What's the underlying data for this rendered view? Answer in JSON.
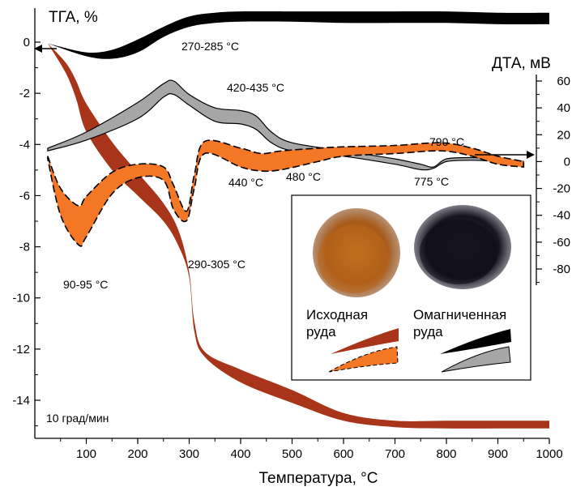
{
  "chart_data": {
    "type": "line",
    "title": "",
    "xlabel": "Температура, °С",
    "ylabel_left": "ТГА, %",
    "ylabel_right": "ДТА, мВ",
    "xlim": [
      0,
      1000
    ],
    "ylim_left": [
      -15.5,
      0.8
    ],
    "ylim_right": [
      -95,
      72
    ],
    "x_ticks": [
      "100",
      "200",
      "300",
      "400",
      "500",
      "600",
      "700",
      "800",
      "900",
      "1000"
    ],
    "y_left_ticks": [
      "0",
      "-2",
      "-4",
      "-6",
      "-8",
      "-10",
      "-12",
      "-14"
    ],
    "y_right_ticks": [
      "60",
      "40",
      "20",
      "0",
      "-20",
      "-40",
      "-60",
      "-80"
    ],
    "heating_rate": "10 град/мин",
    "bands": [
      {
        "name": "TGA original ore",
        "axis": "left",
        "color": "#a83519",
        "style": "solid",
        "x": [
          25,
          60,
          80,
          100,
          150,
          200,
          250,
          280,
          300,
          310,
          330,
          400,
          500,
          600,
          700,
          800,
          900,
          1000
        ],
        "upper": [
          -0.05,
          -0.8,
          -1.5,
          -2.4,
          -3.9,
          -5.1,
          -6.3,
          -7.4,
          -9.0,
          -10.9,
          -12.1,
          -12.8,
          -13.6,
          -14.5,
          -14.8,
          -14.8,
          -14.8,
          -14.8
        ],
        "lower": [
          -0.05,
          -1.2,
          -2.2,
          -3.5,
          -5.0,
          -6.0,
          -7.0,
          -8.0,
          -9.2,
          -11.3,
          -12.3,
          -13.3,
          -14.1,
          -14.8,
          -15.05,
          -15.1,
          -15.1,
          -15.1
        ]
      },
      {
        "name": "TGA magnetized ore",
        "axis": "left",
        "color": "#000000",
        "style": "solid",
        "x": [
          25,
          100,
          150,
          200,
          250,
          300,
          350,
          400,
          500,
          600,
          700,
          800,
          900,
          1000
        ],
        "upper": [
          -0.05,
          -0.4,
          -0.3,
          0.1,
          0.6,
          1.0,
          1.15,
          1.2,
          1.2,
          1.2,
          1.2,
          1.2,
          1.15,
          1.15
        ],
        "lower": [
          -0.05,
          -0.55,
          -0.65,
          -0.4,
          0.2,
          0.6,
          0.75,
          0.8,
          0.8,
          0.75,
          0.75,
          0.75,
          0.7,
          0.7
        ]
      },
      {
        "name": "DTA magnetized ore",
        "axis": "right",
        "color": "#a6a6a6",
        "style": "solid",
        "x": [
          25,
          100,
          200,
          250,
          270,
          300,
          350,
          400,
          430,
          460,
          500,
          600,
          700,
          750,
          775,
          800,
          850,
          900,
          950
        ],
        "upper": [
          10,
          22,
          44,
          58,
          60,
          50,
          40,
          38,
          34,
          22,
          14,
          8,
          2,
          -2,
          -4,
          2,
          3,
          2,
          0
        ],
        "lower": [
          8,
          16,
          32,
          48,
          50,
          42,
          30,
          28,
          24,
          14,
          8,
          4,
          -2,
          -6,
          -5,
          0,
          1,
          0,
          -2
        ]
      },
      {
        "name": "DTA original ore",
        "axis": "right",
        "color": "#f47726",
        "style": "dashed",
        "x": [
          25,
          50,
          85,
          100,
          150,
          200,
          250,
          270,
          295,
          310,
          330,
          400,
          440,
          480,
          550,
          600,
          700,
          790,
          850,
          900,
          950
        ],
        "upper": [
          4,
          -20,
          -33,
          -26,
          -8,
          -2,
          -4,
          -18,
          -37,
          -10,
          15,
          10,
          6,
          8,
          10,
          11,
          12,
          14,
          10,
          4,
          0
        ],
        "lower": [
          2,
          -40,
          -62,
          -56,
          -24,
          -12,
          -14,
          -36,
          -44,
          -20,
          6,
          -4,
          -7,
          -6,
          0,
          4,
          6,
          8,
          4,
          -2,
          -4
        ]
      }
    ],
    "annotations": [
      "270-285 °C",
      "420-435 °C",
      "440 °C",
      "480 °C",
      "790 °C",
      "775 °C",
      "90-95 °C",
      "290-305 °C"
    ],
    "legend": {
      "photo_labels": [
        "Исходная",
        "руда",
        "Омагниченная",
        "руда"
      ]
    }
  }
}
